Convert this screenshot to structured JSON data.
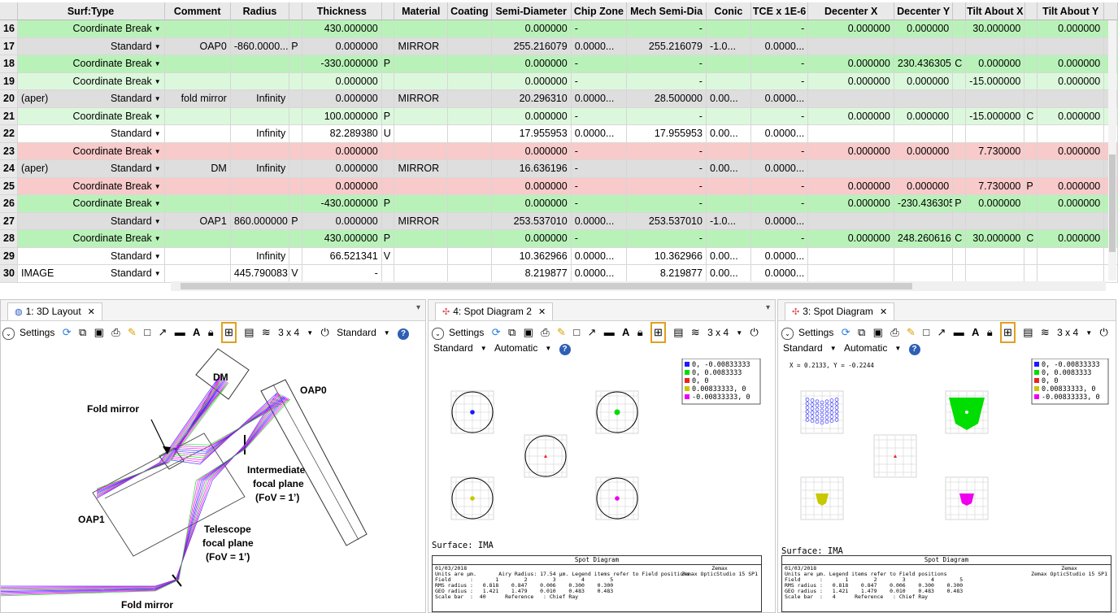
{
  "lde": {
    "columns": [
      {
        "key": "num",
        "label": "",
        "w": 22
      },
      {
        "key": "type",
        "label": "Surf:Type",
        "w": 185
      },
      {
        "key": "comment",
        "label": "Comment",
        "w": 83
      },
      {
        "key": "radius",
        "label": "Radius",
        "w": 74
      },
      {
        "key": "rf",
        "label": "",
        "w": 16
      },
      {
        "key": "thickness",
        "label": "Thickness",
        "w": 100
      },
      {
        "key": "tf",
        "label": "",
        "w": 16
      },
      {
        "key": "material",
        "label": "Material",
        "w": 67
      },
      {
        "key": "coating",
        "label": "Coating",
        "w": 55
      },
      {
        "key": "semidia",
        "label": "Semi-Diameter",
        "w": 100
      },
      {
        "key": "chipzone",
        "label": "Chip Zone",
        "w": 70
      },
      {
        "key": "mechsemi",
        "label": "Mech Semi-Dia",
        "w": 100
      },
      {
        "key": "conic",
        "label": "Conic",
        "w": 56
      },
      {
        "key": "tce",
        "label": "TCE x 1E-6",
        "w": 72
      },
      {
        "key": "decx",
        "label": "Decenter X",
        "w": 108
      },
      {
        "key": "decy",
        "label": "Decenter Y",
        "w": 74
      },
      {
        "key": "dyf",
        "label": "",
        "w": 16
      },
      {
        "key": "tiltx",
        "label": "Tilt About X",
        "w": 74
      },
      {
        "key": "txf",
        "label": "",
        "w": 16
      },
      {
        "key": "tilty",
        "label": "Tilt About Y",
        "w": 84
      },
      {
        "key": "extra",
        "label": "",
        "w": 17
      }
    ],
    "rows": [
      {
        "style": "green",
        "num": "16",
        "pre": "",
        "type": "Coordinate Break",
        "comment": "",
        "radius": "",
        "rf": "",
        "thickness": "430.000000",
        "tf": "",
        "material": "",
        "coating": "",
        "semidia": "0.000000",
        "chipzone": "-",
        "mechsemi": "-",
        "conic": "",
        "tce": "-",
        "decx": "0.000000",
        "decy": "0.000000",
        "dyf": "",
        "tiltx": "30.000000",
        "txf": "",
        "tilty": "0.000000"
      },
      {
        "style": "gray",
        "num": "17",
        "pre": "",
        "type": "Standard",
        "comment": "OAP0",
        "radius": "-860.0000...",
        "rf": "P",
        "thickness": "0.000000",
        "tf": "",
        "material": "MIRROR",
        "coating": "",
        "semidia": "255.216079",
        "chipzone": "0.0000...",
        "mechsemi": "255.216079",
        "conic": "-1.0...",
        "tce": "0.0000...",
        "decx": "",
        "decy": "",
        "dyf": "",
        "tiltx": "",
        "txf": "",
        "tilty": ""
      },
      {
        "style": "green",
        "num": "18",
        "pre": "",
        "type": "Coordinate Break",
        "comment": "",
        "radius": "",
        "rf": "",
        "thickness": "-330.000000",
        "tf": "P",
        "material": "",
        "coating": "",
        "semidia": "0.000000",
        "chipzone": "-",
        "mechsemi": "-",
        "conic": "",
        "tce": "-",
        "decx": "0.000000",
        "decy": "230.436305",
        "dyf": "C",
        "tiltx": "0.000000",
        "txf": "",
        "tilty": "0.000000"
      },
      {
        "style": "lgreen",
        "num": "19",
        "pre": "",
        "type": "Coordinate Break",
        "comment": "",
        "radius": "",
        "rf": "",
        "thickness": "0.000000",
        "tf": "",
        "material": "",
        "coating": "",
        "semidia": "0.000000",
        "chipzone": "-",
        "mechsemi": "-",
        "conic": "",
        "tce": "-",
        "decx": "0.000000",
        "decy": "0.000000",
        "dyf": "",
        "tiltx": "-15.000000",
        "txf": "",
        "tilty": "0.000000"
      },
      {
        "style": "gray",
        "num": "20",
        "pre": "(aper)",
        "type": "Standard",
        "comment": "fold mirror",
        "radius": "Infinity",
        "rf": "",
        "thickness": "0.000000",
        "tf": "",
        "material": "MIRROR",
        "coating": "",
        "semidia": "20.296310",
        "chipzone": "0.0000...",
        "mechsemi": "28.500000",
        "conic": "0.00...",
        "tce": "0.0000...",
        "decx": "",
        "decy": "",
        "dyf": "",
        "tiltx": "",
        "txf": "",
        "tilty": ""
      },
      {
        "style": "lgreen",
        "num": "21",
        "pre": "",
        "type": "Coordinate Break",
        "comment": "",
        "radius": "",
        "rf": "",
        "thickness": "100.000000",
        "tf": "P",
        "material": "",
        "coating": "",
        "semidia": "0.000000",
        "chipzone": "-",
        "mechsemi": "-",
        "conic": "",
        "tce": "-",
        "decx": "0.000000",
        "decy": "0.000000",
        "dyf": "",
        "tiltx": "-15.000000",
        "txf": "C",
        "tilty": "0.000000"
      },
      {
        "style": "white",
        "num": "22",
        "pre": "",
        "type": "Standard",
        "comment": "",
        "radius": "Infinity",
        "rf": "",
        "thickness": "82.289380",
        "tf": "U",
        "material": "",
        "coating": "",
        "semidia": "17.955953",
        "chipzone": "0.0000...",
        "mechsemi": "17.955953",
        "conic": "0.00...",
        "tce": "0.0000...",
        "decx": "",
        "decy": "",
        "dyf": "",
        "tiltx": "",
        "txf": "",
        "tilty": ""
      },
      {
        "style": "red",
        "num": "23",
        "pre": "",
        "type": "Coordinate Break",
        "comment": "",
        "radius": "",
        "rf": "",
        "thickness": "0.000000",
        "tf": "",
        "material": "",
        "coating": "",
        "semidia": "0.000000",
        "chipzone": "-",
        "mechsemi": "-",
        "conic": "",
        "tce": "-",
        "decx": "0.000000",
        "decy": "0.000000",
        "dyf": "",
        "tiltx": "7.730000",
        "txf": "",
        "tilty": "0.000000"
      },
      {
        "style": "gray",
        "num": "24",
        "pre": "(aper)",
        "type": "Standard",
        "comment": "DM",
        "radius": "Infinity",
        "rf": "",
        "thickness": "0.000000",
        "tf": "",
        "material": "MIRROR",
        "coating": "",
        "semidia": "16.636196",
        "chipzone": "-",
        "mechsemi": "-",
        "conic": "0.00...",
        "tce": "0.0000...",
        "decx": "",
        "decy": "",
        "dyf": "",
        "tiltx": "",
        "txf": "",
        "tilty": ""
      },
      {
        "style": "red",
        "num": "25",
        "pre": "",
        "type": "Coordinate Break",
        "comment": "",
        "radius": "",
        "rf": "",
        "thickness": "0.000000",
        "tf": "",
        "material": "",
        "coating": "",
        "semidia": "0.000000",
        "chipzone": "-",
        "mechsemi": "-",
        "conic": "",
        "tce": "-",
        "decx": "0.000000",
        "decy": "0.000000",
        "dyf": "",
        "tiltx": "7.730000",
        "txf": "P",
        "tilty": "0.000000"
      },
      {
        "style": "green",
        "num": "26",
        "pre": "",
        "type": "Coordinate Break",
        "comment": "",
        "radius": "",
        "rf": "",
        "thickness": "-430.000000",
        "tf": "P",
        "material": "",
        "coating": "",
        "semidia": "0.000000",
        "chipzone": "-",
        "mechsemi": "-",
        "conic": "",
        "tce": "-",
        "decx": "0.000000",
        "decy": "-230.436305",
        "dyf": "P",
        "tiltx": "0.000000",
        "txf": "",
        "tilty": "0.000000"
      },
      {
        "style": "gray",
        "num": "27",
        "pre": "",
        "type": "Standard",
        "comment": "OAP1",
        "radius": "860.000000",
        "rf": "P",
        "thickness": "0.000000",
        "tf": "",
        "material": "MIRROR",
        "coating": "",
        "semidia": "253.537010",
        "chipzone": "0.0000...",
        "mechsemi": "253.537010",
        "conic": "-1.0...",
        "tce": "0.0000...",
        "decx": "",
        "decy": "",
        "dyf": "",
        "tiltx": "",
        "txf": "",
        "tilty": ""
      },
      {
        "style": "green",
        "num": "28",
        "pre": "",
        "type": "Coordinate Break",
        "comment": "",
        "radius": "",
        "rf": "",
        "thickness": "430.000000",
        "tf": "P",
        "material": "",
        "coating": "",
        "semidia": "0.000000",
        "chipzone": "-",
        "mechsemi": "-",
        "conic": "",
        "tce": "-",
        "decx": "0.000000",
        "decy": "248.260616",
        "dyf": "C",
        "tiltx": "30.000000",
        "txf": "C",
        "tilty": "0.000000"
      },
      {
        "style": "white",
        "num": "29",
        "pre": "",
        "type": "Standard",
        "comment": "",
        "radius": "Infinity",
        "rf": "",
        "thickness": "66.521341",
        "tf": "V",
        "material": "",
        "coating": "",
        "semidia": "10.362966",
        "chipzone": "0.0000...",
        "mechsemi": "10.362966",
        "conic": "0.00...",
        "tce": "0.0000...",
        "decx": "",
        "decy": "",
        "dyf": "",
        "tiltx": "",
        "txf": "",
        "tilty": ""
      },
      {
        "style": "white",
        "num": "30",
        "pre": "IMAGE",
        "type": "Standard",
        "comment": "",
        "radius": "445.790083",
        "rf": "V",
        "thickness": "-",
        "tf": "",
        "material": "",
        "coating": "",
        "semidia": "8.219877",
        "chipzone": "0.0000...",
        "mechsemi": "8.219877",
        "conic": "0.00...",
        "tce": "0.0000...",
        "decx": "",
        "decy": "",
        "dyf": "",
        "tiltx": "",
        "txf": "",
        "tilty": ""
      }
    ]
  },
  "panels": {
    "layout": {
      "tab": "1: 3D Layout",
      "settings": "Settings",
      "grid": "3 x 4",
      "mode": "Standard",
      "labels": {
        "dm": "DM",
        "fold_top": "Fold mirror",
        "oap0": "OAP0",
        "ifp1": "Intermediate",
        "ifp2": "focal plane",
        "ifp3": "(FoV = 1’)",
        "oap1": "OAP1",
        "tfp1": "Telescope",
        "tfp2": "focal plane",
        "tfp3": "(FoV = 1’)",
        "fold_bottom": "Fold mirror"
      }
    },
    "spot2": {
      "tab": "4: Spot Diagram 2",
      "settings": "Settings",
      "grid": "3 x 4",
      "mode1": "Standard",
      "mode2": "Automatic",
      "surface": "Surface: IMA",
      "legend": [
        "0, -0.00833333",
        "0, 0.0083333",
        "0, 0",
        "0.00833333, 0",
        "-0.00833333, 0"
      ],
      "info_title": "Spot Diagram",
      "info_left": "01/03/2018\nUnits are µm.       Airy Radius: 17.54 µm. Legend items refer to Field positions\nField      :       1        2        3        4        5\nRMS radius :   0.818    0.847    0.006    0.300    0.300\nGEO radius :   1.421    1.479    0.010    0.483    0.483\nScale bar  :  40      Reference   : Chief Ray",
      "info_right": "Zemax\nZemax OpticStudio 15 SP1"
    },
    "spot3": {
      "tab": "3: Spot Diagram",
      "settings": "Settings",
      "grid": "3 x 4",
      "mode1": "Standard",
      "mode2": "Automatic",
      "xy": "X = 0.2133, Y = -0.2244",
      "surface": "Surface: IMA",
      "legend": [
        "0, -0.00833333",
        "0, 0.0083333",
        "0, 0",
        "0.00833333, 0",
        "-0.00833333, 0"
      ],
      "info_title": "Spot Diagram",
      "info_left": "01/03/2018\nUnits are µm. Legend items refer to Field positions\nField      :       1        2        3        4        5\nRMS radius :   0.818    0.847    0.006    0.300    0.300\nGEO radius :   1.421    1.479    0.010    0.483    0.483\nScale bar  :   4      Reference   : Chief Ray",
      "info_right": "Zemax\nZemax OpticStudio 15 SP1"
    }
  },
  "colors": {
    "field1": "#1a1aff",
    "field2": "#00dd00",
    "field3": "#ee2222",
    "field4": "#c8c800",
    "field5": "#ee00ee"
  }
}
